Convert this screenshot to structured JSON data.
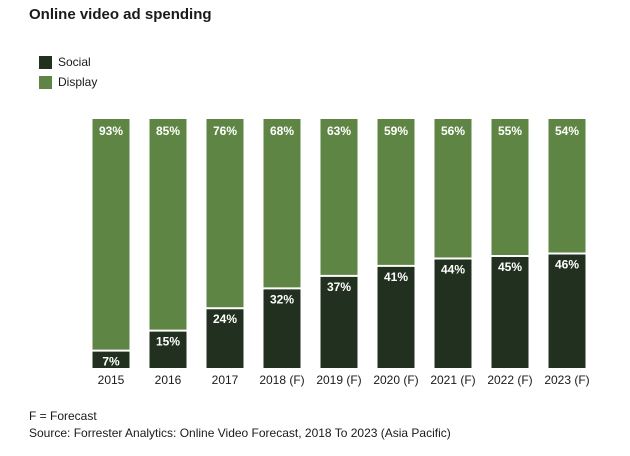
{
  "chart_data": {
    "type": "bar",
    "stacked": true,
    "title": "Online video ad spending",
    "categories": [
      "2015",
      "2016",
      "2017",
      "2018 (F)",
      "2019 (F)",
      "2020 (F)",
      "2021 (F)",
      "2022 (F)",
      "2023 (F)"
    ],
    "series": [
      {
        "name": "Social",
        "color": "#22311f",
        "values": [
          7,
          15,
          24,
          32,
          37,
          41,
          44,
          45,
          46
        ],
        "labels": [
          "7%",
          "15%",
          "24%",
          "32%",
          "37%",
          "41%",
          "44%",
          "45%",
          "46%"
        ]
      },
      {
        "name": "Display",
        "color": "#5e8543",
        "values": [
          93,
          85,
          76,
          68,
          63,
          59,
          56,
          55,
          54
        ],
        "labels": [
          "93%",
          "85%",
          "76%",
          "68%",
          "63%",
          "59%",
          "56%",
          "55%",
          "54%"
        ]
      }
    ],
    "ylim": [
      0,
      100
    ],
    "legend_position": "top-left",
    "grid": false
  },
  "footnotes": {
    "forecast_note": "F = Forecast",
    "source": "Source: Forrester Analytics: Online Video Forecast, 2018 To 2023 (Asia Pacific)"
  }
}
